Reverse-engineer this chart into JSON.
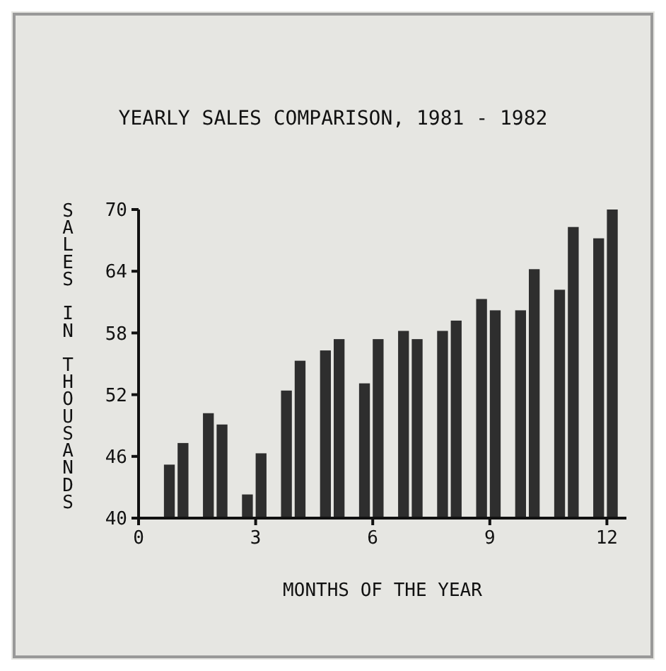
{
  "chart_data": {
    "type": "bar",
    "title": "YEARLY SALES COMPARISON, 1981 - 1982",
    "xlabel": "MONTHS OF THE YEAR",
    "ylabel": "SALES IN THOUSANDS",
    "x": [
      1,
      2,
      3,
      4,
      5,
      6,
      7,
      8,
      9,
      10,
      11,
      12
    ],
    "series": [
      {
        "color": "#2e2e2e",
        "values": [
          45.2,
          50.2,
          42.3,
          52.4,
          56.3,
          53.1,
          58.2,
          58.2,
          61.3,
          60.2,
          62.2,
          67.2
        ]
      },
      {
        "color": "#2e2e2e",
        "values": [
          47.3,
          49.1,
          46.3,
          55.3,
          57.4,
          57.4,
          57.4,
          59.2,
          60.2,
          64.2,
          68.3,
          70
        ]
      }
    ],
    "xlim": [
      0,
      12.5
    ],
    "xticks": [
      0,
      3,
      6,
      9,
      12
    ],
    "ylim": [
      40,
      70
    ],
    "yticks": [
      40,
      46,
      52,
      58,
      64,
      70
    ],
    "grid": false
  }
}
